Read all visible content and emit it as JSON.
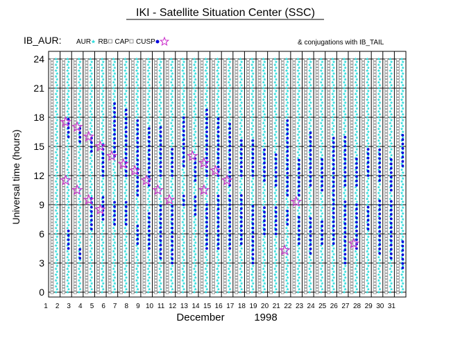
{
  "title": "IKI - Satellite Situation Center (SSC)",
  "panel_label": "IB_AUR:",
  "legend": [
    {
      "label": "AUR",
      "color": "#33dddd",
      "symbol": "star-small"
    },
    {
      "label": "RB",
      "color": "#888888",
      "symbol": "square-open"
    },
    {
      "label": "CAP",
      "color": "#888888",
      "symbol": "square-open"
    },
    {
      "label": "CUSP",
      "color": "#0000dd",
      "symbol": "dot"
    },
    {
      "label": "",
      "color": "#cc33cc",
      "symbol": "star-outline"
    }
  ],
  "conjugation_note": "& conjugations with IB_TAIL",
  "colors": {
    "aur": "#33dddd",
    "rb_cap": "#888888",
    "cusp": "#0000dd",
    "conjugation": "#cc33cc"
  },
  "chart_data": {
    "type": "scatter",
    "title": "IKI - Satellite Situation Center (SSC)",
    "xlabel": "December",
    "year": "1998",
    "ylabel": "Universal time (hours)",
    "x_ticks": [
      "1",
      "2",
      "3",
      "4",
      "5",
      "6",
      "7",
      "8",
      "9",
      "10",
      "11",
      "12",
      "13",
      "14",
      "15",
      "16",
      "17",
      "18",
      "19",
      "20",
      "21",
      "22",
      "23",
      "24",
      "25",
      "26",
      "27",
      "28",
      "29",
      "30",
      "31"
    ],
    "y_ticks": [
      0,
      3,
      6,
      9,
      12,
      15,
      18,
      21,
      24
    ],
    "ylim": [
      0,
      24
    ],
    "grid": true,
    "cusp_intervals": [
      {
        "day": 2,
        "ranges": [
          [
            4.5,
            6.5
          ],
          [
            16.0,
            18.0
          ]
        ]
      },
      {
        "day": 3,
        "ranges": [
          [
            3.5,
            4.5
          ],
          [
            15.5,
            17.0
          ]
        ]
      },
      {
        "day": 4,
        "ranges": [
          [
            6.5,
            10.0
          ],
          [
            14.5,
            16.0
          ]
        ]
      },
      {
        "day": 5,
        "ranges": [
          [
            7.5,
            10.0
          ],
          [
            12.0,
            15.5
          ]
        ]
      },
      {
        "day": 6,
        "ranges": [
          [
            7.0,
            9.5
          ],
          [
            14.0,
            19.5
          ]
        ]
      },
      {
        "day": 7,
        "ranges": [
          [
            7.0,
            9.5
          ],
          [
            12.0,
            19.0
          ]
        ]
      },
      {
        "day": 8,
        "ranges": [
          [
            5.0,
            7.0
          ],
          [
            10.0,
            18.0
          ]
        ]
      },
      {
        "day": 9,
        "ranges": [
          [
            4.5,
            8.5
          ],
          [
            11.0,
            17.0
          ]
        ]
      },
      {
        "day": 10,
        "ranges": [
          [
            3.5,
            9.0
          ],
          [
            12.0,
            17.0
          ]
        ]
      },
      {
        "day": 11,
        "ranges": [
          [
            3.0,
            9.0
          ],
          [
            12.0,
            15.0
          ]
        ]
      },
      {
        "day": 12,
        "ranges": [
          [
            9.0,
            10.0
          ],
          [
            13.0,
            18.0
          ]
        ]
      },
      {
        "day": 13,
        "ranges": [
          [
            8.0,
            10.0
          ],
          [
            11.5,
            14.0
          ]
        ]
      },
      {
        "day": 14,
        "ranges": [
          [
            4.5,
            9.0
          ],
          [
            12.0,
            19.0
          ]
        ]
      },
      {
        "day": 15,
        "ranges": [
          [
            4.5,
            10.0
          ],
          [
            12.0,
            18.0
          ]
        ]
      },
      {
        "day": 16,
        "ranges": [
          [
            4.5,
            10.0
          ],
          [
            11.0,
            17.5
          ]
        ]
      },
      {
        "day": 17,
        "ranges": [
          [
            5.0,
            10.0
          ],
          [
            12.0,
            16.0
          ]
        ]
      },
      {
        "day": 18,
        "ranges": [
          [
            3.0,
            9.0
          ],
          [
            12.0,
            16.0
          ]
        ]
      },
      {
        "day": 19,
        "ranges": [
          [
            6.0,
            9.0
          ],
          [
            11.5,
            15.0
          ]
        ]
      },
      {
        "day": 20,
        "ranges": [
          [
            6.0,
            9.0
          ],
          [
            11.0,
            14.5
          ]
        ]
      },
      {
        "day": 21,
        "ranges": [
          [
            7.0,
            8.5
          ],
          [
            10.0,
            18.0
          ]
        ]
      },
      {
        "day": 22,
        "ranges": [
          [
            5.0,
            8.0
          ],
          [
            10.0,
            14.0
          ]
        ]
      },
      {
        "day": 23,
        "ranges": [
          [
            4.0,
            8.0
          ],
          [
            11.0,
            16.5
          ]
        ]
      },
      {
        "day": 24,
        "ranges": [
          [
            5.0,
            7.5
          ],
          [
            10.5,
            14.0
          ]
        ]
      },
      {
        "day": 25,
        "ranges": [
          [
            5.0,
            9.5
          ],
          [
            10.0,
            16.0
          ]
        ]
      },
      {
        "day": 26,
        "ranges": [
          [
            3.0,
            9.5
          ],
          [
            11.0,
            16.0
          ]
        ]
      },
      {
        "day": 27,
        "ranges": [
          [
            4.5,
            9.0
          ],
          [
            11.0,
            14.0
          ]
        ]
      },
      {
        "day": 28,
        "ranges": [
          [
            6.5,
            9.0
          ],
          [
            12.0,
            15.0
          ]
        ]
      },
      {
        "day": 29,
        "ranges": [
          [
            4.0,
            9.5
          ],
          [
            11.5,
            15.0
          ]
        ]
      },
      {
        "day": 30,
        "ranges": [
          [
            3.5,
            9.5
          ],
          [
            10.5,
            14.0
          ]
        ]
      },
      {
        "day": 31,
        "ranges": [
          [
            2.5,
            5.5
          ],
          [
            13.0,
            16.5
          ]
        ]
      }
    ],
    "conjugations": [
      {
        "day": 2,
        "ut": 17.5
      },
      {
        "day": 2,
        "ut": 11.5
      },
      {
        "day": 3,
        "ut": 17.0
      },
      {
        "day": 3,
        "ut": 10.5
      },
      {
        "day": 4,
        "ut": 16.0
      },
      {
        "day": 4,
        "ut": 9.5
      },
      {
        "day": 5,
        "ut": 15.0
      },
      {
        "day": 5,
        "ut": 8.5
      },
      {
        "day": 6,
        "ut": 14.0
      },
      {
        "day": 7,
        "ut": 13.2
      },
      {
        "day": 8,
        "ut": 12.5
      },
      {
        "day": 9,
        "ut": 11.5
      },
      {
        "day": 10,
        "ut": 10.5
      },
      {
        "day": 11,
        "ut": 9.5
      },
      {
        "day": 13,
        "ut": 14.0
      },
      {
        "day": 14,
        "ut": 13.3
      },
      {
        "day": 14,
        "ut": 10.5
      },
      {
        "day": 15,
        "ut": 12.5
      },
      {
        "day": 16,
        "ut": 11.5
      },
      {
        "day": 21,
        "ut": 4.3
      },
      {
        "day": 22,
        "ut": 9.3
      },
      {
        "day": 27,
        "ut": 5.0
      }
    ]
  }
}
